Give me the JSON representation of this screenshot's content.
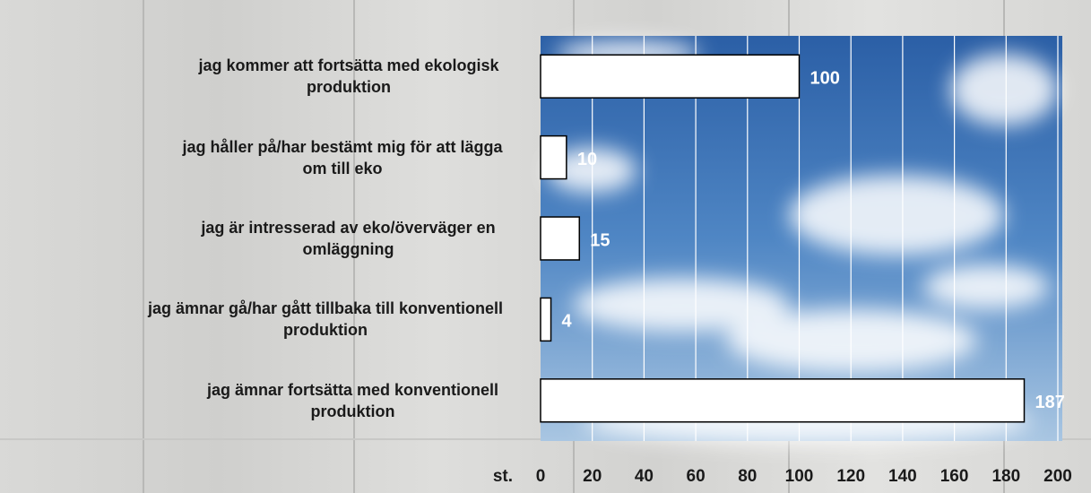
{
  "chart_data": {
    "type": "bar",
    "orientation": "horizontal",
    "categories": [
      "jag kommer att fortsätta med ekologisk produktion",
      "jag håller på/har bestämt mig för att lägga om till eko",
      "jag är intresserad av eko/överväger en omläggning",
      "jag ämnar gå/har gått tillbaka till konventionell produktion",
      "jag ämnar fortsätta med konventionell produktion"
    ],
    "values": [
      100,
      10,
      15,
      4,
      187
    ],
    "color": "#ffffff",
    "xlabel": "st.",
    "xlim": [
      0,
      200
    ],
    "xticks": [
      0,
      20,
      40,
      60,
      80,
      100,
      120,
      140,
      160,
      180,
      200
    ],
    "grid": true
  }
}
